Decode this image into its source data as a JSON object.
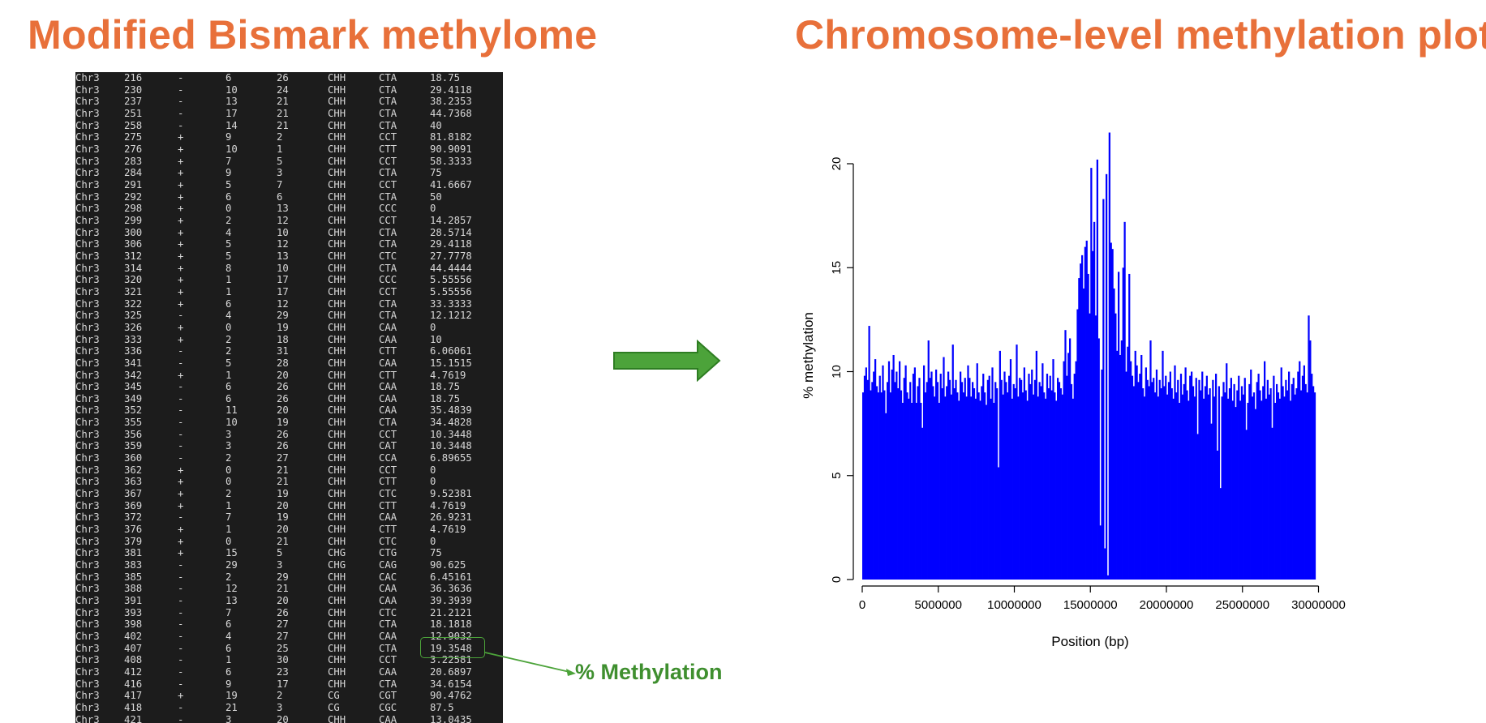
{
  "titles": {
    "left": "Modified Bismark methylome",
    "right": "Chromosome-level methylation plot"
  },
  "annotation": {
    "label": "% Methylation",
    "highlight_row_index": 48
  },
  "colors": {
    "title": "#E8703A",
    "annotation": "#3F8F2F",
    "arrow_fill": "#4CA33A",
    "arrow_stroke": "#2E7D22",
    "terminal_bg": "#1c1c1c",
    "bars": "#0000FF"
  },
  "icons": {
    "big_arrow": "right-arrow-icon"
  },
  "methylome_rows": [
    [
      "Chr3",
      "216",
      "-",
      "6",
      "26",
      "CHH",
      "CTA",
      "18.75"
    ],
    [
      "Chr3",
      "230",
      "-",
      "10",
      "24",
      "CHH",
      "CTA",
      "29.4118"
    ],
    [
      "Chr3",
      "237",
      "-",
      "13",
      "21",
      "CHH",
      "CTA",
      "38.2353"
    ],
    [
      "Chr3",
      "251",
      "-",
      "17",
      "21",
      "CHH",
      "CTA",
      "44.7368"
    ],
    [
      "Chr3",
      "258",
      "-",
      "14",
      "21",
      "CHH",
      "CTA",
      "40"
    ],
    [
      "Chr3",
      "275",
      "+",
      "9",
      "2",
      "CHH",
      "CCT",
      "81.8182"
    ],
    [
      "Chr3",
      "276",
      "+",
      "10",
      "1",
      "CHH",
      "CTT",
      "90.9091"
    ],
    [
      "Chr3",
      "283",
      "+",
      "7",
      "5",
      "CHH",
      "CCT",
      "58.3333"
    ],
    [
      "Chr3",
      "284",
      "+",
      "9",
      "3",
      "CHH",
      "CTA",
      "75"
    ],
    [
      "Chr3",
      "291",
      "+",
      "5",
      "7",
      "CHH",
      "CCT",
      "41.6667"
    ],
    [
      "Chr3",
      "292",
      "+",
      "6",
      "6",
      "CHH",
      "CTA",
      "50"
    ],
    [
      "Chr3",
      "298",
      "+",
      "0",
      "13",
      "CHH",
      "CCC",
      "0"
    ],
    [
      "Chr3",
      "299",
      "+",
      "2",
      "12",
      "CHH",
      "CCT",
      "14.2857"
    ],
    [
      "Chr3",
      "300",
      "+",
      "4",
      "10",
      "CHH",
      "CTA",
      "28.5714"
    ],
    [
      "Chr3",
      "306",
      "+",
      "5",
      "12",
      "CHH",
      "CTA",
      "29.4118"
    ],
    [
      "Chr3",
      "312",
      "+",
      "5",
      "13",
      "CHH",
      "CTC",
      "27.7778"
    ],
    [
      "Chr3",
      "314",
      "+",
      "8",
      "10",
      "CHH",
      "CTA",
      "44.4444"
    ],
    [
      "Chr3",
      "320",
      "+",
      "1",
      "17",
      "CHH",
      "CCC",
      "5.55556"
    ],
    [
      "Chr3",
      "321",
      "+",
      "1",
      "17",
      "CHH",
      "CCT",
      "5.55556"
    ],
    [
      "Chr3",
      "322",
      "+",
      "6",
      "12",
      "CHH",
      "CTA",
      "33.3333"
    ],
    [
      "Chr3",
      "325",
      "-",
      "4",
      "29",
      "CHH",
      "CTA",
      "12.1212"
    ],
    [
      "Chr3",
      "326",
      "+",
      "0",
      "19",
      "CHH",
      "CAA",
      "0"
    ],
    [
      "Chr3",
      "333",
      "+",
      "2",
      "18",
      "CHH",
      "CAA",
      "10"
    ],
    [
      "Chr3",
      "336",
      "-",
      "2",
      "31",
      "CHH",
      "CTT",
      "6.06061"
    ],
    [
      "Chr3",
      "341",
      "-",
      "5",
      "28",
      "CHH",
      "CAA",
      "15.1515"
    ],
    [
      "Chr3",
      "342",
      "+",
      "1",
      "20",
      "CHH",
      "CTT",
      "4.7619"
    ],
    [
      "Chr3",
      "345",
      "-",
      "6",
      "26",
      "CHH",
      "CAA",
      "18.75"
    ],
    [
      "Chr3",
      "349",
      "-",
      "6",
      "26",
      "CHH",
      "CAA",
      "18.75"
    ],
    [
      "Chr3",
      "352",
      "-",
      "11",
      "20",
      "CHH",
      "CAA",
      "35.4839"
    ],
    [
      "Chr3",
      "355",
      "-",
      "10",
      "19",
      "CHH",
      "CTA",
      "34.4828"
    ],
    [
      "Chr3",
      "356",
      "-",
      "3",
      "26",
      "CHH",
      "CCT",
      "10.3448"
    ],
    [
      "Chr3",
      "359",
      "-",
      "3",
      "26",
      "CHH",
      "CAT",
      "10.3448"
    ],
    [
      "Chr3",
      "360",
      "-",
      "2",
      "27",
      "CHH",
      "CCA",
      "6.89655"
    ],
    [
      "Chr3",
      "362",
      "+",
      "0",
      "21",
      "CHH",
      "CCT",
      "0"
    ],
    [
      "Chr3",
      "363",
      "+",
      "0",
      "21",
      "CHH",
      "CTT",
      "0"
    ],
    [
      "Chr3",
      "367",
      "+",
      "2",
      "19",
      "CHH",
      "CTC",
      "9.52381"
    ],
    [
      "Chr3",
      "369",
      "+",
      "1",
      "20",
      "CHH",
      "CTT",
      "4.7619"
    ],
    [
      "Chr3",
      "372",
      "-",
      "7",
      "19",
      "CHH",
      "CAA",
      "26.9231"
    ],
    [
      "Chr3",
      "376",
      "+",
      "1",
      "20",
      "CHH",
      "CTT",
      "4.7619"
    ],
    [
      "Chr3",
      "379",
      "+",
      "0",
      "21",
      "CHH",
      "CTC",
      "0"
    ],
    [
      "Chr3",
      "381",
      "+",
      "15",
      "5",
      "CHG",
      "CTG",
      "75"
    ],
    [
      "Chr3",
      "383",
      "-",
      "29",
      "3",
      "CHG",
      "CAG",
      "90.625"
    ],
    [
      "Chr3",
      "385",
      "-",
      "2",
      "29",
      "CHH",
      "CAC",
      "6.45161"
    ],
    [
      "Chr3",
      "388",
      "-",
      "12",
      "21",
      "CHH",
      "CAA",
      "36.3636"
    ],
    [
      "Chr3",
      "391",
      "-",
      "13",
      "20",
      "CHH",
      "CAA",
      "39.3939"
    ],
    [
      "Chr3",
      "393",
      "-",
      "7",
      "26",
      "CHH",
      "CTC",
      "21.2121"
    ],
    [
      "Chr3",
      "398",
      "-",
      "6",
      "27",
      "CHH",
      "CTA",
      "18.1818"
    ],
    [
      "Chr3",
      "402",
      "-",
      "4",
      "27",
      "CHH",
      "CAA",
      "12.9032"
    ],
    [
      "Chr3",
      "407",
      "-",
      "6",
      "25",
      "CHH",
      "CTA",
      "19.3548"
    ],
    [
      "Chr3",
      "408",
      "-",
      "1",
      "30",
      "CHH",
      "CCT",
      "3.22581"
    ],
    [
      "Chr3",
      "412",
      "-",
      "6",
      "23",
      "CHH",
      "CAA",
      "20.6897"
    ],
    [
      "Chr3",
      "416",
      "-",
      "9",
      "17",
      "CHH",
      "CTA",
      "34.6154"
    ],
    [
      "Chr3",
      "417",
      "+",
      "19",
      "2",
      "CG",
      "CGT",
      "90.4762"
    ],
    [
      "Chr3",
      "418",
      "-",
      "21",
      "3",
      "CG",
      "CGC",
      "87.5"
    ],
    [
      "Chr3",
      "421",
      "-",
      "3",
      "20",
      "CHH",
      "CAA",
      "13.0435"
    ]
  ],
  "chart_data": {
    "type": "bar",
    "xlabel": "Position (bp)",
    "ylabel": "% methylation",
    "xlim": [
      0,
      30400000
    ],
    "ylim": [
      0,
      20
    ],
    "x_ticks": [
      0,
      5000000,
      10000000,
      15000000,
      20000000,
      25000000,
      30000000
    ],
    "x_tick_labels": [
      "0",
      "5000000",
      "10000000",
      "15000000",
      "20000000",
      "25000000",
      "30000000"
    ],
    "y_ticks": [
      0,
      5,
      10,
      15,
      20
    ],
    "y_tick_labels": [
      "0",
      "5",
      "10",
      "15",
      "20"
    ],
    "bar_color": "#0000FF",
    "series": [
      {
        "x_start": 0,
        "x_step": 100000,
        "values": [
          9.0,
          9.8,
          10.2,
          9.6,
          12.2,
          9.1,
          9.5,
          10.0,
          10.6,
          9.3,
          9.0,
          9.8,
          9.0,
          10.3,
          9.1,
          8.0,
          9.5,
          10.5,
          9.0,
          10.1,
          10.8,
          9.5,
          10.0,
          9.2,
          10.5,
          9.1,
          8.5,
          9.7,
          10.3,
          9.0,
          8.7,
          9.5,
          8.5,
          9.9,
          10.2,
          8.5,
          9.3,
          9.7,
          8.5,
          7.3,
          10.3,
          9.0,
          9.5,
          11.5,
          9.7,
          10.0,
          9.3,
          8.8,
          10.1,
          9.5,
          8.5,
          9.9,
          9.2,
          10.7,
          8.8,
          9.3,
          10.0,
          9.6,
          8.9,
          11.3,
          9.2,
          9.6,
          9.0,
          8.6,
          10.0,
          9.5,
          9.0,
          9.7,
          8.8,
          10.3,
          9.7,
          8.8,
          9.5,
          9.2,
          8.7,
          10.4,
          9.0,
          8.6,
          9.3,
          9.9,
          9.0,
          8.4,
          9.6,
          9.8,
          8.7,
          10.2,
          8.5,
          9.5,
          9.2,
          5.4,
          11.0,
          9.6,
          8.9,
          10.0,
          9.5,
          9.0,
          9.8,
          10.6,
          8.7,
          9.4,
          9.2,
          11.3,
          8.8,
          9.7,
          9.6,
          9.0,
          10.2,
          9.1,
          8.6,
          9.9,
          9.4,
          10.1,
          8.9,
          9.6,
          11.0,
          8.8,
          9.5,
          9.3,
          10.4,
          9.0,
          8.7,
          9.9,
          9.2,
          9.8,
          9.1,
          10.6,
          9.0,
          8.6,
          9.7,
          9.5,
          9.2,
          8.9,
          10.5,
          12.0,
          9.8,
          10.9,
          11.6,
          9.4,
          8.7,
          9.9,
          10.5,
          13.0,
          14.5,
          15.2,
          15.6,
          14.0,
          16.0,
          16.3,
          14.7,
          12.8,
          19.8,
          15.8,
          17.2,
          12.7,
          20.2,
          11.6,
          2.6,
          10.1,
          18.3,
          1.5,
          19.5,
          0.2,
          21.5,
          16.2,
          15.9,
          14.0,
          12.8,
          11.0,
          14.8,
          10.8,
          11.5,
          15.0,
          17.2,
          10.0,
          11.2,
          14.7,
          10.5,
          9.8,
          9.3,
          11.0,
          10.3,
          9.5,
          9.9,
          10.8,
          9.2,
          8.8,
          10.2,
          9.6,
          9.3,
          11.5,
          9.5,
          9.7,
          9.0,
          10.1,
          8.8,
          9.6,
          9.2,
          11.0,
          9.3,
          9.8,
          8.9,
          9.5,
          10.0,
          9.2,
          8.7,
          10.3,
          9.0,
          9.6,
          8.5,
          9.9,
          8.9,
          9.4,
          10.2,
          9.1,
          8.6,
          9.8,
          10.0,
          9.3,
          8.8,
          9.7,
          7.0,
          9.6,
          9.1,
          10.0,
          8.7,
          9.3,
          9.8,
          8.9,
          9.2,
          7.5,
          9.6,
          8.8,
          9.9,
          6.2,
          9.3,
          4.4,
          8.8,
          9.5,
          9.0,
          10.4,
          8.7,
          9.2,
          9.7,
          8.6,
          9.4,
          8.3,
          9.1,
          9.8,
          8.6,
          9.3,
          8.9,
          9.7,
          7.2,
          8.5,
          9.4,
          10.1,
          8.8,
          9.0,
          8.2,
          9.5,
          9.9,
          9.1,
          8.6,
          9.3,
          10.5,
          8.7,
          9.6,
          8.9,
          9.2,
          7.3,
          9.8,
          8.5,
          9.4,
          9.0,
          8.7,
          10.2,
          9.3,
          8.8,
          9.6,
          9.1,
          10.0,
          8.6,
          9.4,
          9.7,
          8.9,
          9.2,
          10.0,
          10.5,
          9.1,
          9.8,
          10.3,
          9.4,
          9.0,
          12.7,
          11.5,
          9.9,
          9.3,
          9.0
        ]
      }
    ]
  }
}
